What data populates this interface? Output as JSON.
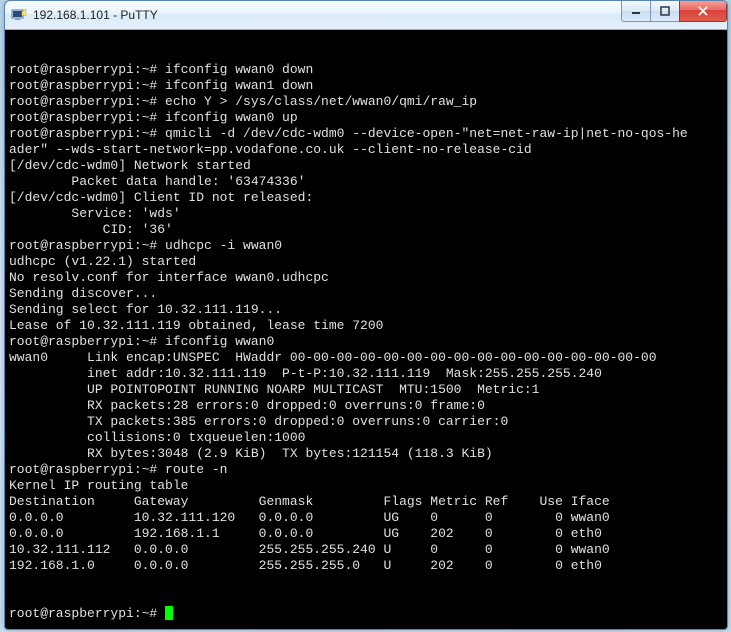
{
  "window": {
    "title": "192.168.1.101 - PuTTY"
  },
  "terminal": {
    "prompt": "root@raspberrypi:~# ",
    "lines": [
      "root@raspberrypi:~# ifconfig wwan0 down",
      "root@raspberrypi:~# ifconfig wwan1 down",
      "root@raspberrypi:~# echo Y > /sys/class/net/wwan0/qmi/raw_ip",
      "root@raspberrypi:~# ifconfig wwan0 up",
      "root@raspberrypi:~# qmicli -d /dev/cdc-wdm0 --device-open-\"net=net-raw-ip|net-no-qos-he",
      "ader\" --wds-start-network=pp.vodafone.co.uk --client-no-release-cid",
      "[/dev/cdc-wdm0] Network started",
      "        Packet data handle: '63474336'",
      "[/dev/cdc-wdm0] Client ID not released:",
      "        Service: 'wds'",
      "            CID: '36'",
      "root@raspberrypi:~# udhcpc -i wwan0",
      "udhcpc (v1.22.1) started",
      "No resolv.conf for interface wwan0.udhcpc",
      "Sending discover...",
      "Sending select for 10.32.111.119...",
      "Lease of 10.32.111.119 obtained, lease time 7200",
      "root@raspberrypi:~# ifconfig wwan0",
      "wwan0     Link encap:UNSPEC  HWaddr 00-00-00-00-00-00-00-00-00-00-00-00-00-00-00-00",
      "          inet addr:10.32.111.119  P-t-P:10.32.111.119  Mask:255.255.255.240",
      "          UP POINTOPOINT RUNNING NOARP MULTICAST  MTU:1500  Metric:1",
      "          RX packets:28 errors:0 dropped:0 overruns:0 frame:0",
      "          TX packets:385 errors:0 dropped:0 overruns:0 carrier:0",
      "          collisions:0 txqueuelen:1000",
      "          RX bytes:3048 (2.9 KiB)  TX bytes:121154 (118.3 KiB)",
      "",
      "root@raspberrypi:~# route -n",
      "Kernel IP routing table",
      "Destination     Gateway         Genmask         Flags Metric Ref    Use Iface",
      "0.0.0.0         10.32.111.120   0.0.0.0         UG    0      0        0 wwan0",
      "0.0.0.0         192.168.1.1     0.0.0.0         UG    202    0        0 eth0",
      "10.32.111.112   0.0.0.0         255.255.255.240 U     0      0        0 wwan0",
      "192.168.1.0     0.0.0.0         255.255.255.0   U     202    0        0 eth0"
    ]
  }
}
